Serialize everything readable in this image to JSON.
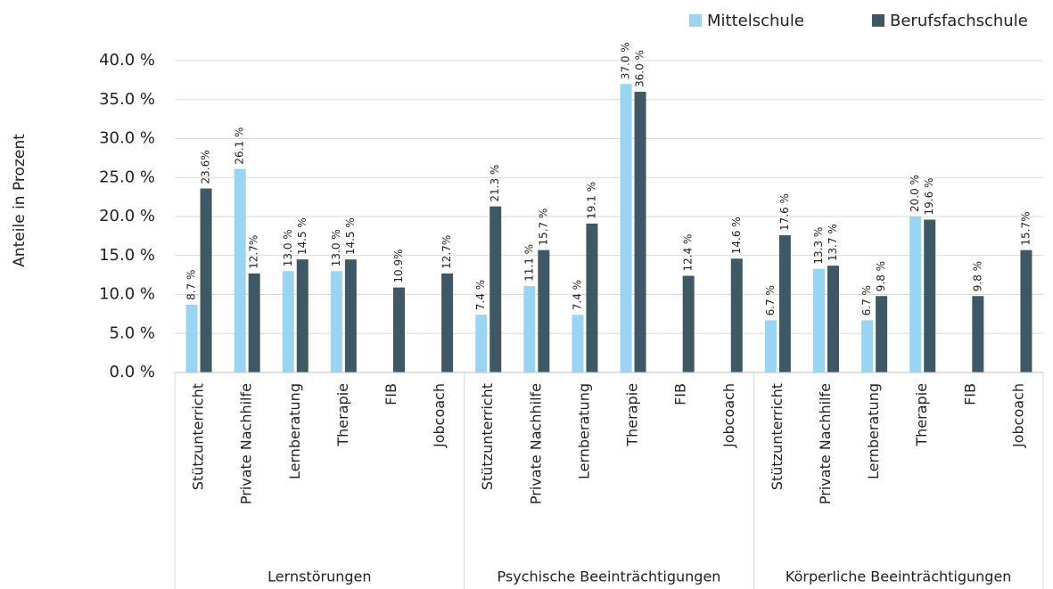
{
  "chart_data": {
    "type": "bar",
    "y_axis_label": "Anteile in Prozent",
    "categories": [
      "Stützunterricht",
      "Private Nachhilfe",
      "Lernberatung",
      "Therapie",
      "FIB",
      "Jobcoach",
      "Stützunterricht",
      "Private Nachhilfe",
      "Lernberatung",
      "Therapie",
      "FIB",
      "Jobcoach",
      "Stützunterricht",
      "Private Nachhilfe",
      "Lernberatung",
      "Therapie",
      "FIB",
      "Jobcoach"
    ],
    "groups": [
      "Lernstörungen",
      "Psychische Beeinträchtigungen",
      "Körperliche Beeinträchtigungen"
    ],
    "series": [
      {
        "name": "Mittelschule",
        "color": "#99d5f2",
        "values": [
          8.7,
          26.1,
          13.0,
          13.0,
          null,
          null,
          7.4,
          11.1,
          7.4,
          37.0,
          null,
          null,
          6.7,
          13.3,
          6.7,
          20.0,
          null,
          null
        ],
        "value_labels": [
          "8.7 %",
          "26.1 %",
          "13.0 %",
          "13.0 %",
          null,
          null,
          "7.4 %",
          "11.1 %",
          "7.4 %",
          "37.0 %",
          null,
          null,
          "6.7 %",
          "13.3 %",
          "6.7 %",
          "20.0 %",
          null,
          null
        ]
      },
      {
        "name": "Berufsfachschule",
        "color": "#3f5866",
        "values": [
          23.6,
          12.7,
          14.5,
          14.5,
          10.9,
          12.7,
          21.3,
          15.7,
          19.1,
          36.0,
          12.4,
          14.6,
          17.6,
          13.7,
          9.8,
          19.6,
          9.8,
          15.7
        ],
        "value_labels": [
          "23.6%",
          "12.7%",
          "14.5 %",
          "14.5 %",
          "10.9%",
          "12.7%",
          "21.3 %",
          "15.7 %",
          "19.1 %",
          "36.0 %",
          "12.4 %",
          "14.6 %",
          "17.6 %",
          "13.7 %",
          "9.8 %",
          "19.6 %",
          "9.8 %",
          "15.7%"
        ]
      }
    ],
    "ylim": [
      0,
      40
    ],
    "yticks": [
      {
        "value": 0,
        "label": "0.0 %"
      },
      {
        "value": 5,
        "label": "5.0 %"
      },
      {
        "value": 10,
        "label": "10.0 %"
      },
      {
        "value": 15,
        "label": "15.0 %"
      },
      {
        "value": 20,
        "label": "20.0 %"
      },
      {
        "value": 25,
        "label": "25.0 %"
      },
      {
        "value": 30,
        "label": "30.0 %"
      },
      {
        "value": 35,
        "label": "35.0 %"
      },
      {
        "value": 40,
        "label": "40.0 %"
      }
    ],
    "grid": true
  }
}
